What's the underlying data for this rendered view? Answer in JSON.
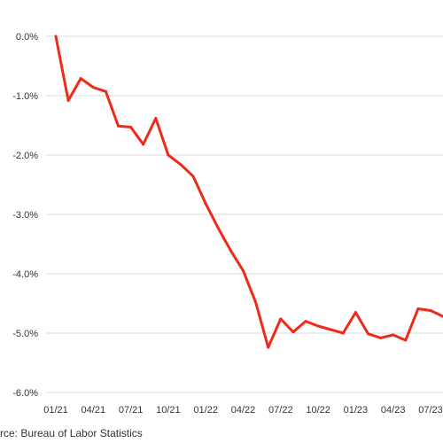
{
  "chart_data": {
    "type": "line",
    "title": "",
    "xlabel": "",
    "ylabel": "",
    "ylim": [
      -6.0,
      0.0
    ],
    "y_ticks": [
      "0.0%",
      "-1.0%",
      "-2.0%",
      "-3.0%",
      "-4.0%",
      "-5.0%",
      "-6.0%"
    ],
    "y_tick_values": [
      0,
      -1,
      -2,
      -3,
      -4,
      -5,
      -6
    ],
    "x_ticks": [
      "01/21",
      "04/21",
      "07/21",
      "10/21",
      "01/22",
      "04/22",
      "07/22",
      "10/22",
      "01/23",
      "04/23",
      "07/23"
    ],
    "grid": true,
    "line_color": "#ee2a1a",
    "series": [
      {
        "x": [
          "01/21",
          "02/21",
          "03/21",
          "04/21",
          "05/21",
          "06/21",
          "07/21",
          "08/21",
          "09/21",
          "10/21",
          "11/21",
          "12/21",
          "01/22",
          "02/22",
          "03/22",
          "04/22",
          "05/22",
          "06/22",
          "07/22",
          "08/22",
          "09/22",
          "10/22",
          "11/22",
          "12/22",
          "01/23",
          "02/23",
          "03/23",
          "04/23",
          "05/23",
          "06/23",
          "07/23",
          "08/23"
        ],
        "values": [
          0.0,
          -1.08,
          -0.71,
          -0.86,
          -0.93,
          -1.51,
          -1.53,
          -1.82,
          -1.38,
          -2.0,
          -2.16,
          -2.36,
          -2.82,
          -3.23,
          -3.61,
          -3.95,
          -4.48,
          -5.24,
          -4.76,
          -4.98,
          -4.8,
          -4.88,
          -4.94,
          -5.0,
          -4.65,
          -5.01,
          -5.08,
          -5.03,
          -5.12,
          -4.59,
          -4.62,
          -4.72
        ]
      }
    ]
  },
  "source": "rce: Bureau of Labor Statistics"
}
